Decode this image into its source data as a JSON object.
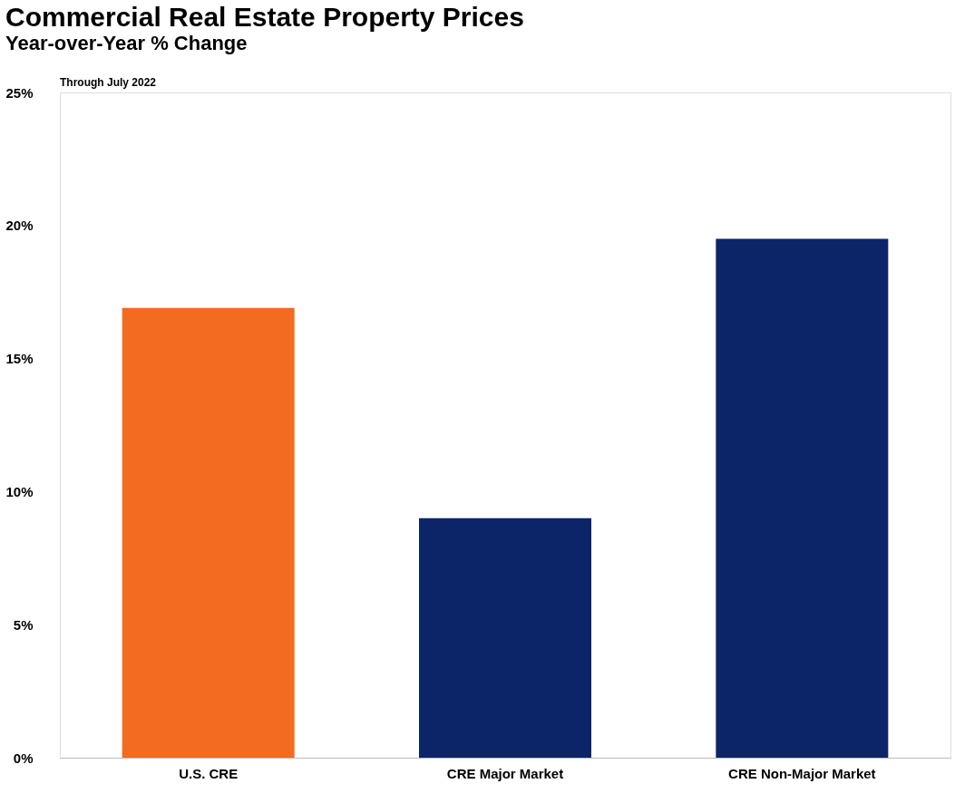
{
  "chart_data": {
    "type": "bar",
    "title": "Commercial Real Estate Property Prices",
    "subtitle": "Year-over-Year % Change",
    "annotations": [
      "Through July 2022"
    ],
    "categories": [
      "U.S. CRE",
      "CRE Major Market",
      "CRE Non-Major Market"
    ],
    "values": [
      16.9,
      9.0,
      19.5
    ],
    "colors": [
      "#f26b21",
      "#0c2569",
      "#0c2569"
    ],
    "ylim": [
      0,
      25
    ],
    "yticks": [
      {
        "value": 0,
        "label": "0%"
      },
      {
        "value": 5,
        "label": "5%"
      },
      {
        "value": 10,
        "label": "10%"
      },
      {
        "value": 15,
        "label": "15%"
      },
      {
        "value": 20,
        "label": "20%"
      },
      {
        "value": 25,
        "label": "25%"
      }
    ],
    "grid": false
  }
}
